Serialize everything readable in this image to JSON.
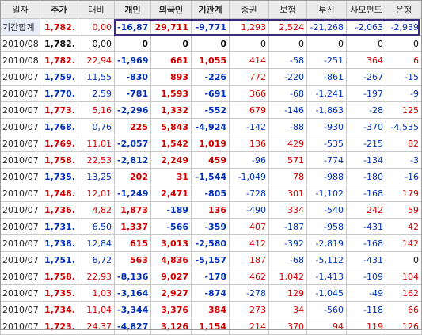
{
  "colors": {
    "up": "#d10000",
    "down": "#0030b8",
    "neutral": "#111111",
    "header_bg": "#ebebeb",
    "highlight": "#3b2a7a"
  },
  "columns": [
    "일자",
    "주가",
    "대비",
    "개인",
    "외국인",
    "기관계",
    "증권",
    "보험",
    "투신",
    "사모펀드",
    "은행"
  ],
  "rows": [
    [
      "기간합계",
      "1,782.",
      "0,00",
      "-16,87",
      "29,711",
      "-9,771",
      "1,293",
      "2,524",
      "-21,268",
      "-2,063",
      "-2,939"
    ],
    [
      "2010/08",
      "1,782.",
      "0,00",
      "0",
      "0",
      "0",
      "0",
      "0",
      "0",
      "0",
      "0"
    ],
    [
      "2010/08",
      "1,782.",
      "22,94",
      "-1,969",
      "661",
      "1,055",
      "414",
      "-58",
      "-251",
      "364",
      "6"
    ],
    [
      "2010/07",
      "1,759.",
      "11,55",
      "-830",
      "893",
      "-226",
      "772",
      "-220",
      "-861",
      "-267",
      "-15"
    ],
    [
      "2010/07",
      "1,770.",
      "2,59",
      "-781",
      "1,593",
      "-691",
      "366",
      "-68",
      "-1,241",
      "-197",
      "-9"
    ],
    [
      "2010/07",
      "1,773.",
      "5,16",
      "-2,296",
      "1,332",
      "-552",
      "679",
      "-146",
      "-1,863",
      "-28",
      "125"
    ],
    [
      "2010/07",
      "1,768.",
      "0,76",
      "225",
      "5,843",
      "-4,924",
      "-142",
      "-88",
      "-930",
      "-370",
      "-4,535"
    ],
    [
      "2010/07",
      "1,769.",
      "11,01",
      "-2,057",
      "1,542",
      "1,019",
      "136",
      "429",
      "-535",
      "-215",
      "82"
    ],
    [
      "2010/07",
      "1,758.",
      "22,53",
      "-2,812",
      "2,249",
      "459",
      "-96",
      "571",
      "-774",
      "-134",
      "-3"
    ],
    [
      "2010/07",
      "1,735.",
      "13,25",
      "202",
      "31",
      "-1,544",
      "-1,049",
      "78",
      "-988",
      "-180",
      "-16"
    ],
    [
      "2010/07",
      "1,748.",
      "12,01",
      "-1,249",
      "2,471",
      "-805",
      "-728",
      "301",
      "-1,102",
      "-168",
      "179"
    ],
    [
      "2010/07",
      "1,736.",
      "4,82",
      "1,873",
      "-189",
      "136",
      "-490",
      "334",
      "-540",
      "242",
      "59"
    ],
    [
      "2010/07",
      "1,731.",
      "6,50",
      "1,337",
      "-566",
      "-359",
      "407",
      "-187",
      "-958",
      "-431",
      "42"
    ],
    [
      "2010/07",
      "1,738.",
      "12,84",
      "615",
      "3,013",
      "-2,580",
      "412",
      "-392",
      "-2,819",
      "-168",
      "142"
    ],
    [
      "2010/07",
      "1,751.",
      "6,72",
      "563",
      "4,836",
      "-5,157",
      "187",
      "-68",
      "-5,112",
      "-431",
      "0"
    ],
    [
      "2010/07",
      "1,758.",
      "22,93",
      "-8,136",
      "9,027",
      "-178",
      "462",
      "1,042",
      "-1,413",
      "-109",
      "104"
    ],
    [
      "2010/07",
      "1,735.",
      "1,03",
      "-3,164",
      "2,927",
      "-874",
      "-278",
      "129",
      "-1,045",
      "-49",
      "162"
    ],
    [
      "2010/07",
      "1,734.",
      "11,04",
      "-3,344",
      "3,376",
      "384",
      "273",
      "34",
      "-560",
      "-118",
      "66"
    ],
    [
      "2010/07",
      "1,723.",
      "24,37",
      "-4,827",
      "3,126",
      "1,154",
      "214",
      "370",
      "94",
      "119",
      "126"
    ]
  ],
  "row_dirs": [
    "up",
    "nz",
    "up",
    "dn",
    "dn",
    "up",
    "dn",
    "up",
    "up",
    "dn",
    "up",
    "up",
    "dn",
    "dn",
    "dn",
    "up",
    "up",
    "up",
    "up"
  ],
  "icons": []
}
